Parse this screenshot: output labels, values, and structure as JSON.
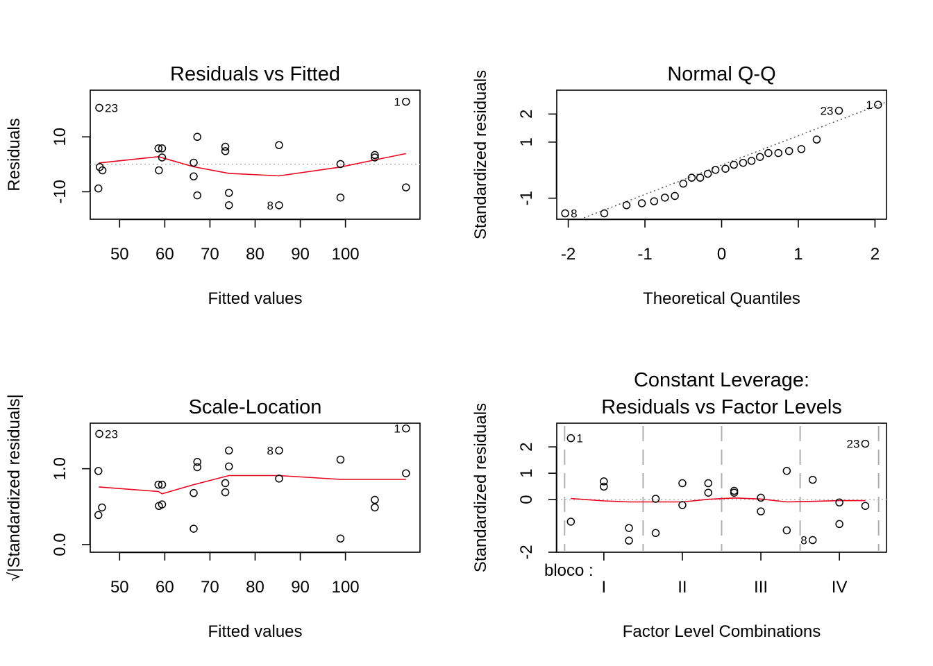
{
  "chart_data": [
    {
      "id": "p1",
      "type": "scatter",
      "title": "Residuals vs Fitted",
      "xlabel": "Fitted values",
      "ylabel": "Residuals",
      "xlim": [
        43.5,
        116.5
      ],
      "ylim": [
        -20,
        27
      ],
      "xticks": [
        50,
        60,
        70,
        80,
        90,
        100
      ],
      "xtick_labels": [
        "50",
        "60",
        "70",
        "80",
        "90",
        "100"
      ],
      "yticks": [
        -10,
        10
      ],
      "ytick_labels": [
        "-10",
        "10"
      ],
      "reference_line": 0,
      "points": [
        {
          "x": 45.5,
          "y": 20.6,
          "label": "23"
        },
        {
          "x": 45.6,
          "y": -1.0
        },
        {
          "x": 45.3,
          "y": -8.8
        },
        {
          "x": 46.2,
          "y": -2.2
        },
        {
          "x": 58.6,
          "y": 5.8
        },
        {
          "x": 58.7,
          "y": -2.2
        },
        {
          "x": 59.4,
          "y": 5.8
        },
        {
          "x": 59.4,
          "y": 2.5
        },
        {
          "x": 66.4,
          "y": 0.6
        },
        {
          "x": 66.4,
          "y": -4.4
        },
        {
          "x": 67.2,
          "y": 10.0
        },
        {
          "x": 67.2,
          "y": -11.3
        },
        {
          "x": 73.4,
          "y": 6.4
        },
        {
          "x": 73.4,
          "y": 4.8
        },
        {
          "x": 74.2,
          "y": -10.4
        },
        {
          "x": 74.2,
          "y": -14.9
        },
        {
          "x": 85.3,
          "y": 7.0
        },
        {
          "x": 85.3,
          "y": -14.9,
          "label": "8",
          "label_side": "left"
        },
        {
          "x": 98.9,
          "y": 0.1
        },
        {
          "x": 98.9,
          "y": -12.1
        },
        {
          "x": 106.5,
          "y": 3.4
        },
        {
          "x": 106.5,
          "y": 2.5
        },
        {
          "x": 113.4,
          "y": 22.8,
          "label": "1",
          "label_side": "left"
        },
        {
          "x": 113.4,
          "y": -8.4
        }
      ],
      "smooth": [
        [
          45.4,
          0.5
        ],
        [
          58.6,
          2.8
        ],
        [
          66.4,
          -0.9
        ],
        [
          74.2,
          -3.3
        ],
        [
          85.3,
          -4.2
        ],
        [
          98.9,
          -1.0
        ],
        [
          106.5,
          1.6
        ],
        [
          113.4,
          3.9
        ]
      ]
    },
    {
      "id": "p2",
      "type": "scatter",
      "title": "Normal Q-Q",
      "xlabel": "Theoretical Quantiles",
      "ylabel": "Standardized residuals",
      "xlim": [
        -2.15,
        2.15
      ],
      "ylim": [
        -1.75,
        2.85
      ],
      "xticks": [
        -2,
        -1,
        0,
        1,
        2
      ],
      "xtick_labels": [
        "-2",
        "-1",
        "0",
        "1",
        "2"
      ],
      "yticks": [
        -1,
        1,
        2
      ],
      "ytick_labels": [
        "-1",
        "1",
        "2"
      ],
      "qq_line": [
        [
          -2.15,
          -2.07
        ],
        [
          2.15,
          2.43
        ]
      ],
      "points": [
        {
          "x": -2.04,
          "y": -1.54,
          "label": "8"
        },
        {
          "x": -1.53,
          "y": -1.54
        },
        {
          "x": -1.24,
          "y": -1.25
        },
        {
          "x": -1.04,
          "y": -1.18
        },
        {
          "x": -0.88,
          "y": -1.11
        },
        {
          "x": -0.74,
          "y": -0.98
        },
        {
          "x": -0.61,
          "y": -0.92
        },
        {
          "x": -0.5,
          "y": -0.48
        },
        {
          "x": -0.39,
          "y": -0.27
        },
        {
          "x": -0.28,
          "y": -0.27
        },
        {
          "x": -0.18,
          "y": -0.13
        },
        {
          "x": -0.08,
          "y": 0.01
        },
        {
          "x": 0.05,
          "y": 0.05
        },
        {
          "x": 0.16,
          "y": 0.19
        },
        {
          "x": 0.28,
          "y": 0.26
        },
        {
          "x": 0.39,
          "y": 0.33
        },
        {
          "x": 0.5,
          "y": 0.47
        },
        {
          "x": 0.61,
          "y": 0.61
        },
        {
          "x": 0.74,
          "y": 0.61
        },
        {
          "x": 0.88,
          "y": 0.68
        },
        {
          "x": 1.04,
          "y": 0.75
        },
        {
          "x": 1.24,
          "y": 1.09
        },
        {
          "x": 1.53,
          "y": 2.12,
          "label": "23",
          "label_side": "left"
        },
        {
          "x": 2.04,
          "y": 2.33,
          "label": "1",
          "label_side": "left"
        }
      ]
    },
    {
      "id": "p3",
      "type": "scatter",
      "title": "Scale-Location",
      "xlabel": "Fitted values",
      "ylabel": "√|Standardized residuals|",
      "xlim": [
        43.5,
        116.5
      ],
      "ylim": [
        -0.1,
        1.6
      ],
      "xticks": [
        50,
        60,
        70,
        80,
        90,
        100
      ],
      "xtick_labels": [
        "50",
        "60",
        "70",
        "80",
        "90",
        "100"
      ],
      "yticks": [
        0.0,
        1.0
      ],
      "ytick_labels": [
        "0.0",
        "1.0"
      ],
      "points": [
        {
          "x": 45.5,
          "y": 1.46,
          "label": "23"
        },
        {
          "x": 45.3,
          "y": 0.97
        },
        {
          "x": 45.3,
          "y": 0.39
        },
        {
          "x": 46.1,
          "y": 0.49
        },
        {
          "x": 58.6,
          "y": 0.79
        },
        {
          "x": 58.7,
          "y": 0.51
        },
        {
          "x": 59.4,
          "y": 0.79
        },
        {
          "x": 59.4,
          "y": 0.53
        },
        {
          "x": 66.4,
          "y": 0.68
        },
        {
          "x": 66.4,
          "y": 0.21
        },
        {
          "x": 67.2,
          "y": 1.09
        },
        {
          "x": 67.2,
          "y": 1.02
        },
        {
          "x": 73.4,
          "y": 0.81
        },
        {
          "x": 73.4,
          "y": 0.69
        },
        {
          "x": 74.2,
          "y": 1.24
        },
        {
          "x": 74.2,
          "y": 1.03
        },
        {
          "x": 85.3,
          "y": 1.24,
          "label": "8",
          "label_side": "left"
        },
        {
          "x": 85.3,
          "y": 0.87
        },
        {
          "x": 98.9,
          "y": 1.12
        },
        {
          "x": 98.9,
          "y": 0.08
        },
        {
          "x": 106.5,
          "y": 0.59
        },
        {
          "x": 106.5,
          "y": 0.49
        },
        {
          "x": 113.4,
          "y": 1.53,
          "label": "1",
          "label_side": "left"
        },
        {
          "x": 113.4,
          "y": 0.94
        }
      ],
      "smooth": [
        [
          45.4,
          0.76
        ],
        [
          58.6,
          0.7
        ],
        [
          59.4,
          0.67
        ],
        [
          66.4,
          0.79
        ],
        [
          74.2,
          0.91
        ],
        [
          85.3,
          0.91
        ],
        [
          98.9,
          0.86
        ],
        [
          106.5,
          0.86
        ],
        [
          113.4,
          0.86
        ]
      ]
    },
    {
      "id": "p4",
      "type": "scatter",
      "title": "Constant Leverage:",
      "subtitle": "Residuals vs Factor Levels",
      "xlabel": "Factor Level Combinations",
      "ylabel": "Standardized residuals",
      "factor_label": "bloco :",
      "xlim": [
        0.4,
        4.6
      ],
      "ylim": [
        -2.0,
        2.9
      ],
      "xticks": [
        1,
        2,
        3,
        4
      ],
      "xtick_labels": [
        "I",
        "II",
        "III",
        "IV"
      ],
      "yticks": [
        -2,
        0,
        1,
        2
      ],
      "ytick_labels": [
        "-2",
        "0",
        "1",
        "2"
      ],
      "reference_line": 0,
      "separators": [
        0.5,
        1.5,
        2.5,
        3.5,
        4.5
      ],
      "points": [
        {
          "x": 0.58,
          "y": 2.33,
          "label": "1"
        },
        {
          "x": 0.58,
          "y": -0.84
        },
        {
          "x": 1.0,
          "y": 0.69
        },
        {
          "x": 1.0,
          "y": 0.49
        },
        {
          "x": 1.32,
          "y": -1.08
        },
        {
          "x": 1.32,
          "y": -1.56
        },
        {
          "x": 1.66,
          "y": 0.03
        },
        {
          "x": 1.66,
          "y": -1.27
        },
        {
          "x": 2.0,
          "y": 0.62
        },
        {
          "x": 2.0,
          "y": -0.21
        },
        {
          "x": 2.33,
          "y": 0.62
        },
        {
          "x": 2.33,
          "y": 0.26
        },
        {
          "x": 2.66,
          "y": 0.33
        },
        {
          "x": 2.66,
          "y": 0.26
        },
        {
          "x": 3.0,
          "y": 0.07
        },
        {
          "x": 3.0,
          "y": -0.45
        },
        {
          "x": 3.33,
          "y": 1.09
        },
        {
          "x": 3.33,
          "y": -1.17
        },
        {
          "x": 3.66,
          "y": 0.75
        },
        {
          "x": 3.66,
          "y": -1.54,
          "label": "8",
          "label_side": "left"
        },
        {
          "x": 4.0,
          "y": -0.11
        },
        {
          "x": 4.0,
          "y": -0.93
        },
        {
          "x": 4.33,
          "y": 2.12,
          "label": "23",
          "label_side": "left"
        },
        {
          "x": 4.33,
          "y": -0.24
        }
      ],
      "smooth": [
        [
          0.58,
          0.04
        ],
        [
          1.0,
          -0.05
        ],
        [
          1.32,
          -0.09
        ],
        [
          1.66,
          -0.09
        ],
        [
          2.0,
          -0.09
        ],
        [
          2.33,
          0.01
        ],
        [
          2.66,
          0.06
        ],
        [
          3.0,
          0.02
        ],
        [
          3.33,
          -0.09
        ],
        [
          3.66,
          -0.07
        ],
        [
          4.0,
          -0.04
        ],
        [
          4.33,
          -0.04
        ]
      ]
    }
  ]
}
